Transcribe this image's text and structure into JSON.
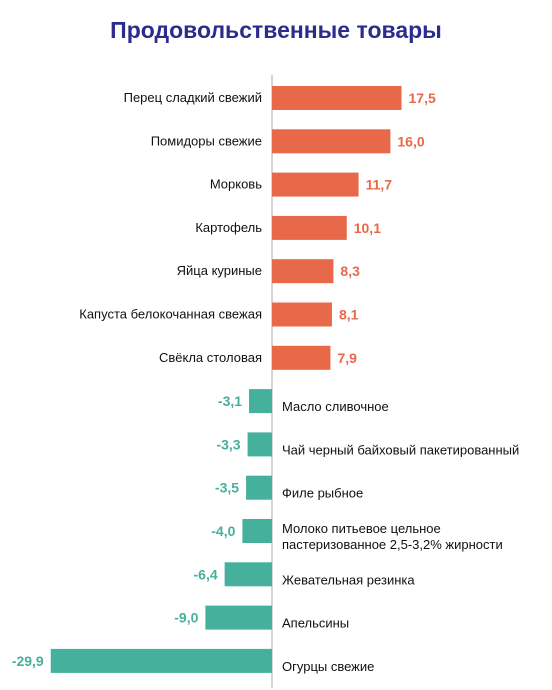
{
  "chart_data": {
    "type": "bar",
    "orientation": "horizontal",
    "title": "Продовольственные товары",
    "categories": [
      "Перец сладкий свежий",
      "Помидоры свежие",
      "Морковь",
      "Картофель",
      "Яйца куриные",
      "Капуста белокочанная свежая",
      "Свёкла столовая",
      "Масло сливочное",
      "Чай черный байховый пакетированный",
      "Филе рыбное",
      "Молоко питьевое цельное пастеризованное 2,5-3,2% жирности",
      "Жевательная резинка",
      "Апельсины",
      "Огурцы свежие"
    ],
    "values": [
      17.5,
      16.0,
      11.7,
      10.1,
      8.3,
      8.1,
      7.9,
      -3.1,
      -3.3,
      -3.5,
      -4.0,
      -6.4,
      -9.0,
      -29.9
    ],
    "value_labels": [
      "17,5",
      "16,0",
      "11,7",
      "10,1",
      "8,3",
      "8,1",
      "7,9",
      "-3,1",
      "-3,3",
      "-3,5",
      "-4,0",
      "-6,4",
      "-9,0",
      "-29,9"
    ],
    "colors": {
      "positive": "#e8694a",
      "negative": "#45b09b",
      "title": "#2b2c8c",
      "axis": "#aaaaaa"
    },
    "grid": false,
    "legend": "none"
  }
}
